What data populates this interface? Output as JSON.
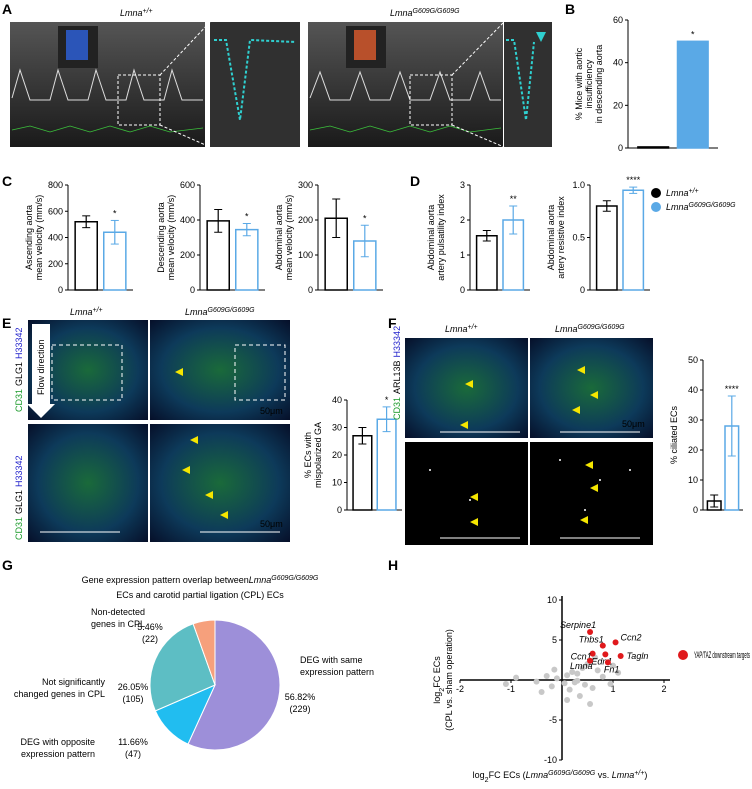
{
  "panels": {
    "legend": [
      {
        "name": "Lmna",
        "sup": "+/+",
        "color": "#000000"
      },
      {
        "name": "Lmna",
        "sup": "G609G/G609G",
        "color": "#5aa9e6"
      }
    ],
    "A": {
      "label": "A",
      "left_gene": "Lmna",
      "left_sup": "+/+",
      "right_gene": "Lmna",
      "right_sup": "G609G/G609G"
    },
    "B": {
      "label": "B",
      "fill": true,
      "ylabel": [
        "% Mice with aortic",
        "insufficiency",
        "in descending aorta"
      ],
      "values": [
        0.5,
        50
      ],
      "ylim": [
        0,
        60
      ],
      "yticks": [
        0,
        20,
        40,
        60
      ],
      "significance": "*"
    },
    "C": {
      "label": "C",
      "charts": [
        {
          "ylabel": [
            "Ascending aorta",
            "mean velocity (mm/s)"
          ],
          "values": [
            520,
            440
          ],
          "errors": [
            45,
            90
          ],
          "ylim": [
            0,
            800
          ],
          "yticks": [
            0,
            200,
            400,
            600,
            800
          ],
          "significance": "*"
        },
        {
          "ylabel": [
            "Descending aorta",
            "mean velocity (mm/s)"
          ],
          "values": [
            395,
            345
          ],
          "errors": [
            65,
            35
          ],
          "ylim": [
            0,
            600
          ],
          "yticks": [
            0,
            200,
            400,
            600
          ],
          "significance": "*"
        },
        {
          "ylabel": [
            "Abdominal aorta",
            "mean velocity (mm/s)"
          ],
          "values": [
            205,
            140
          ],
          "errors": [
            55,
            45
          ],
          "ylim": [
            0,
            300
          ],
          "yticks": [
            0,
            100,
            200,
            300
          ],
          "significance": "*"
        }
      ]
    },
    "D": {
      "label": "D",
      "charts": [
        {
          "ylabel": [
            "Abdominal aorta",
            "artery pulsatility index"
          ],
          "values": [
            1.55,
            2.0
          ],
          "errors": [
            0.15,
            0.4
          ],
          "ylim": [
            0,
            3
          ],
          "yticks": [
            0,
            1,
            2,
            3
          ],
          "significance": "**"
        },
        {
          "ylabel": [
            "Abdominal aorta",
            "artery resistive index"
          ],
          "values": [
            0.8,
            0.95
          ],
          "errors": [
            0.05,
            0.03
          ],
          "ylim": [
            0,
            1
          ],
          "yticks": [
            0,
            0.5,
            {
              "value": 1,
              "label": "1.0"
            }
          ],
          "significance": "****"
        }
      ]
    },
    "E": {
      "label": "E",
      "left_gene": "Lmna",
      "left_sup": "+/+",
      "right_gene": "Lmna",
      "right_sup": "G609G/G609G",
      "stain_1": "CD31",
      "stain_2": "GLG1",
      "stain_3": "H33342",
      "flow": "Flow direction",
      "scale_top": "50μm",
      "scale_bottom": "50μm",
      "chart": {
        "ylabel": [
          "% ECs with",
          "mispolarized GA"
        ],
        "values": [
          27,
          33
        ],
        "errors": [
          3,
          4.5
        ],
        "ylim": [
          0,
          40
        ],
        "yticks": [
          0,
          10,
          20,
          30,
          40
        ],
        "significance": "*"
      }
    },
    "F": {
      "label": "F",
      "left_gene": "Lmna",
      "left_sup": "+/+",
      "right_gene": "Lmna",
      "right_sup": "G609G/G609G",
      "stain_1": "CD31",
      "stain_2": "ARL13B",
      "stain_3": "H33342",
      "stain_bottom": "ARL13B",
      "scale_top": "50μm",
      "scale_bottom": "50μm",
      "chart": {
        "ylabel": [
          "% ciliated ECs"
        ],
        "values": [
          3,
          28
        ],
        "errors": [
          2,
          10
        ],
        "ylim": [
          0,
          50
        ],
        "yticks": [
          0,
          10,
          20,
          30,
          40,
          50
        ],
        "significance": "****"
      }
    },
    "G": {
      "label": "G",
      "title_1": "Gene expression pattern overlap between",
      "title_gene": "Lmna",
      "title_sup": "G609G/G609G",
      "title_2": "ECs  and carotid partial ligation (CPL) ECs",
      "slices": [
        {
          "name": [
            "DEG with same",
            "expression pattern"
          ],
          "value": 56.82,
          "value_label": "56.82%",
          "count_label": "(229)",
          "color": "#9d8fd9"
        },
        {
          "name": [
            "DEG with opposite",
            "expression pattern"
          ],
          "value": 11.66,
          "value_label": "11.66%",
          "count_label": "(47)",
          "color": "#21bdf0"
        },
        {
          "name": [
            "Not significantly",
            "changed genes in CPL"
          ],
          "value": 26.05,
          "value_label": "26.05%",
          "count_label": "(105)",
          "color": "#5dbec4"
        },
        {
          "name": [
            "Non-detected",
            "genes in CPL"
          ],
          "value": 5.46,
          "value_label": "5.46%",
          "count_label": "(22)",
          "color": "#f6a07c"
        }
      ]
    },
    "H": {
      "label": "H",
      "xlim": [
        -2,
        2
      ],
      "ylim": [
        -10,
        10
      ],
      "xticks": [
        -2,
        -1,
        1,
        2
      ],
      "yticks": [
        -10,
        -5,
        5,
        10
      ],
      "ylabel_a": "log",
      "ylabel_sub": "2",
      "ylabel_b": "FC ECs",
      "ylabel_2": "(CPL vs. sham operation)",
      "xlabel_a": "log",
      "xlabel_sub": "2",
      "xlabel_b": "FC ECs (",
      "xlabel_g1": "Lmna",
      "xlabel_s1": "G609G/G609G",
      "xlabel_c": " vs. ",
      "xlabel_g2": "Lmna",
      "xlabel_s2": "+/+",
      "xlabel_d": ")",
      "legend": "YAP/TAZ downstream targets",
      "target_color": "#e0191c",
      "other_color": "#c8c8c8",
      "other": {
        "x": [
          -1.1,
          -0.9,
          -0.5,
          -0.3,
          -0.2,
          -0.1,
          0.05,
          0.1,
          0.15,
          0.2,
          0.25,
          0.3,
          0.35,
          0.4,
          0.45,
          0.5,
          0.6,
          0.7,
          0.8,
          0.95,
          1.0,
          -0.4,
          0.1,
          -0.15,
          0.55,
          0.65,
          1.1,
          0.3
        ],
        "y": [
          -0.5,
          0.3,
          -0.2,
          0.5,
          -0.8,
          0.2,
          -0.4,
          0.6,
          -1.2,
          1.0,
          -0.3,
          0.8,
          -2.0,
          1.5,
          -0.6,
          2.0,
          -1.0,
          1.2,
          0.4,
          -0.5,
          1.8,
          -1.5,
          -2.5,
          1.3,
          -3.0,
          2.8,
          0.9,
          -0.1
        ]
      },
      "targets": {
        "names": [
          "Serpine1",
          "Thbs1",
          "Ccn2",
          "Ccn1",
          "Edn1",
          "Tagln",
          "Lmna",
          "Fn1"
        ],
        "x": [
          0.55,
          0.8,
          1.05,
          0.6,
          0.85,
          1.15,
          0.55,
          0.9
        ],
        "y": [
          6,
          4.3,
          4.7,
          3.3,
          3.2,
          3.0,
          2.4,
          2.2
        ]
      }
    }
  }
}
